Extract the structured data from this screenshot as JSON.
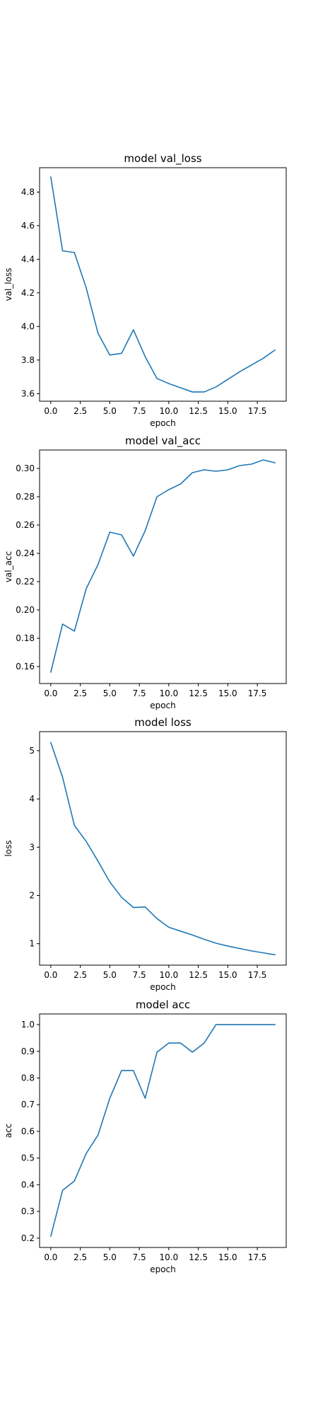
{
  "chart_data": [
    {
      "type": "line",
      "title": "model val_loss",
      "xlabel": "epoch",
      "ylabel": "val_loss",
      "xlim": [
        -0.95,
        19.95
      ],
      "ylim": [
        3.555,
        4.945
      ],
      "xticks": [
        0.0,
        2.5,
        5.0,
        7.5,
        10.0,
        12.5,
        15.0,
        17.5
      ],
      "xtick_labels": [
        "0.0",
        "2.5",
        "5.0",
        "7.5",
        "10.0",
        "12.5",
        "15.0",
        "17.5"
      ],
      "yticks": [
        3.6,
        3.8,
        4.0,
        4.2,
        4.4,
        4.6,
        4.8
      ],
      "ytick_labels": [
        "3.6",
        "3.8",
        "4.0",
        "4.2",
        "4.4",
        "4.6",
        "4.8"
      ],
      "grid": false,
      "color": "#1f77b4",
      "x": [
        0,
        1,
        2,
        3,
        4,
        5,
        6,
        7,
        8,
        9,
        10,
        11,
        12,
        13,
        14,
        15,
        16,
        17,
        18,
        19
      ],
      "y": [
        4.89,
        4.45,
        4.44,
        4.23,
        3.96,
        3.83,
        3.84,
        3.98,
        3.82,
        3.69,
        3.66,
        3.635,
        3.61,
        3.61,
        3.64,
        3.685,
        3.73,
        3.77,
        3.81,
        3.86
      ]
    },
    {
      "type": "line",
      "title": "model val_acc",
      "xlabel": "epoch",
      "ylabel": "val_acc",
      "xlim": [
        -0.95,
        19.95
      ],
      "ylim": [
        0.148,
        0.313
      ],
      "xticks": [
        0.0,
        2.5,
        5.0,
        7.5,
        10.0,
        12.5,
        15.0,
        17.5
      ],
      "xtick_labels": [
        "0.0",
        "2.5",
        "5.0",
        "7.5",
        "10.0",
        "12.5",
        "15.0",
        "17.5"
      ],
      "yticks": [
        0.16,
        0.18,
        0.2,
        0.22,
        0.24,
        0.26,
        0.28,
        0.3
      ],
      "ytick_labels": [
        "0.16",
        "0.18",
        "0.20",
        "0.22",
        "0.24",
        "0.26",
        "0.28",
        "0.30"
      ],
      "grid": false,
      "color": "#1f77b4",
      "x": [
        0,
        1,
        2,
        3,
        4,
        5,
        6,
        7,
        8,
        9,
        10,
        11,
        12,
        13,
        14,
        15,
        16,
        17,
        18,
        19
      ],
      "y": [
        0.156,
        0.19,
        0.185,
        0.215,
        0.232,
        0.255,
        0.253,
        0.238,
        0.256,
        0.28,
        0.285,
        0.289,
        0.297,
        0.299,
        0.298,
        0.299,
        0.302,
        0.303,
        0.306,
        0.304
      ]
    },
    {
      "type": "line",
      "title": "model loss",
      "xlabel": "epoch",
      "ylabel": "loss",
      "xlim": [
        -0.95,
        19.95
      ],
      "ylim": [
        0.555,
        5.395
      ],
      "xticks": [
        0.0,
        2.5,
        5.0,
        7.5,
        10.0,
        12.5,
        15.0,
        17.5
      ],
      "xtick_labels": [
        "0.0",
        "2.5",
        "5.0",
        "7.5",
        "10.0",
        "12.5",
        "15.0",
        "17.5"
      ],
      "yticks": [
        1,
        2,
        3,
        4,
        5
      ],
      "ytick_labels": [
        "1",
        "2",
        "3",
        "4",
        "5"
      ],
      "grid": false,
      "color": "#1f77b4",
      "x": [
        0,
        1,
        2,
        3,
        4,
        5,
        6,
        7,
        8,
        9,
        10,
        11,
        12,
        13,
        14,
        15,
        16,
        17,
        18,
        19
      ],
      "y": [
        5.17,
        4.45,
        3.45,
        3.12,
        2.71,
        2.28,
        1.96,
        1.75,
        1.76,
        1.52,
        1.34,
        1.26,
        1.18,
        1.09,
        1.01,
        0.95,
        0.9,
        0.85,
        0.81,
        0.77
      ]
    },
    {
      "type": "line",
      "title": "model acc",
      "xlabel": "epoch",
      "ylabel": "acc",
      "xlim": [
        -0.95,
        19.95
      ],
      "ylim": [
        0.165,
        1.04
      ],
      "xticks": [
        0.0,
        2.5,
        5.0,
        7.5,
        10.0,
        12.5,
        15.0,
        17.5
      ],
      "xtick_labels": [
        "0.0",
        "2.5",
        "5.0",
        "7.5",
        "10.0",
        "12.5",
        "15.0",
        "17.5"
      ],
      "yticks": [
        0.2,
        0.3,
        0.4,
        0.5,
        0.6,
        0.7,
        0.8,
        0.9,
        1.0
      ],
      "ytick_labels": [
        "0.2",
        "0.3",
        "0.4",
        "0.5",
        "0.6",
        "0.7",
        "0.8",
        "0.9",
        "1.0"
      ],
      "grid": false,
      "color": "#1f77b4",
      "x": [
        0,
        1,
        2,
        3,
        4,
        5,
        6,
        7,
        8,
        9,
        10,
        11,
        12,
        13,
        14,
        15,
        16,
        17,
        18,
        19
      ],
      "y": [
        0.207,
        0.379,
        0.414,
        0.517,
        0.586,
        0.724,
        0.828,
        0.828,
        0.724,
        0.897,
        0.931,
        0.931,
        0.897,
        0.931,
        1.0,
        1.0,
        1.0,
        1.0,
        1.0,
        1.0
      ]
    }
  ]
}
